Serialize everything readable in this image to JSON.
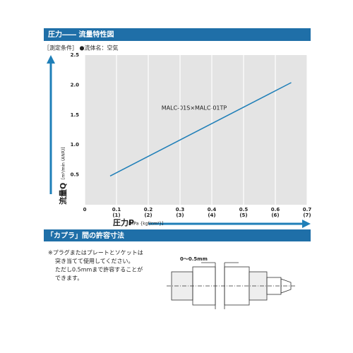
{
  "header": {
    "title": "圧力―― 流量特性図",
    "conditions": "［測定条件］ ●流体名：空気"
  },
  "chart_data": {
    "type": "line",
    "annotation": "MALC-01S×MALC-01TP",
    "y_label": "流量Q",
    "y_unit": "[m³/min (ANR)]",
    "x_label": "圧力P",
    "x_unit": "[MPa {kgf/cm²}]",
    "x": [
      0.08,
      0.65
    ],
    "series": [
      {
        "color": "#1f7fb8",
        "values": [
          0.48,
          2.04
        ]
      }
    ],
    "xlim": [
      0,
      0.7
    ],
    "ylim": [
      0,
      2.5
    ],
    "xticks": [
      0,
      0.1,
      0.2,
      0.3,
      0.4,
      0.5,
      0.6,
      0.7
    ],
    "x2ticks": [
      "(1)",
      "(2)",
      "(3)",
      "(4)",
      "(5)",
      "(6)",
      "(7)"
    ],
    "yticks": [
      0.5,
      {
        "value": 1,
        "label": "1.0"
      },
      1.5,
      {
        "value": 2,
        "label": "2.0"
      },
      2.5
    ],
    "grid": true
  },
  "section2": {
    "title": "「カプラ」間の許容寸法",
    "notes": [
      "※プラグまたはプレートとソケットは",
      "突き当てて使用してください。",
      "ただし0.5mmまで許容することが",
      "できます。"
    ],
    "dimension": "0～0.5mm"
  }
}
